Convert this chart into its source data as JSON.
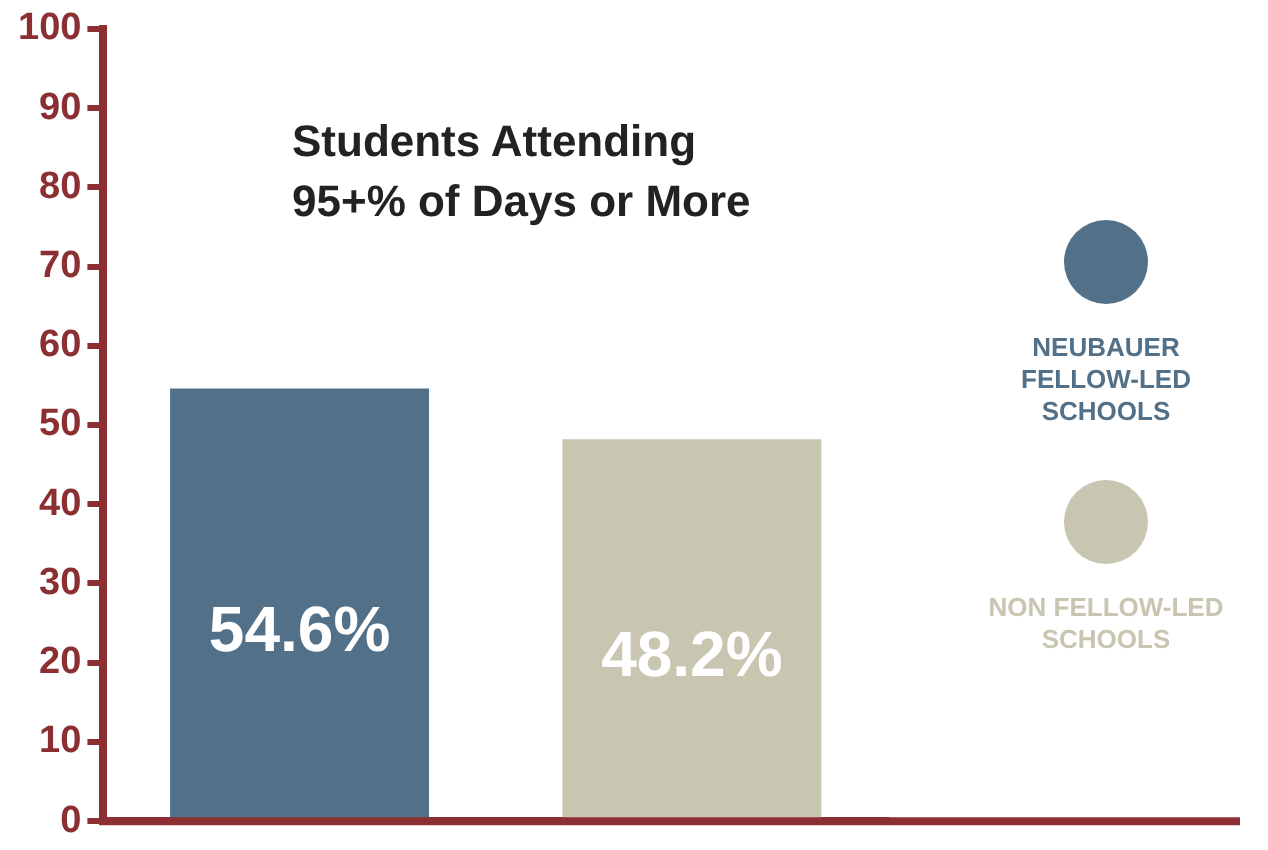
{
  "chart_data": {
    "type": "bar",
    "title": "Students Attending\n95+% of Days or More",
    "categories": [
      null,
      null
    ],
    "series": [
      {
        "name": "NEUBAUER FELLOW-LED SCHOOLS",
        "color": "#527189",
        "values": [
          54.6,
          null
        ],
        "value_labels": [
          "54.6%",
          null
        ]
      },
      {
        "name": "NON FELLOW-LED SCHOOLS",
        "color": "#c8c5b1",
        "values": [
          null,
          48.2
        ],
        "value_labels": [
          null,
          "48.2%"
        ]
      }
    ],
    "ylim": [
      0,
      100
    ],
    "yticks": [
      0,
      10,
      20,
      30,
      40,
      50,
      60,
      70,
      80,
      90,
      100
    ],
    "grid": false,
    "legend": "right"
  }
}
